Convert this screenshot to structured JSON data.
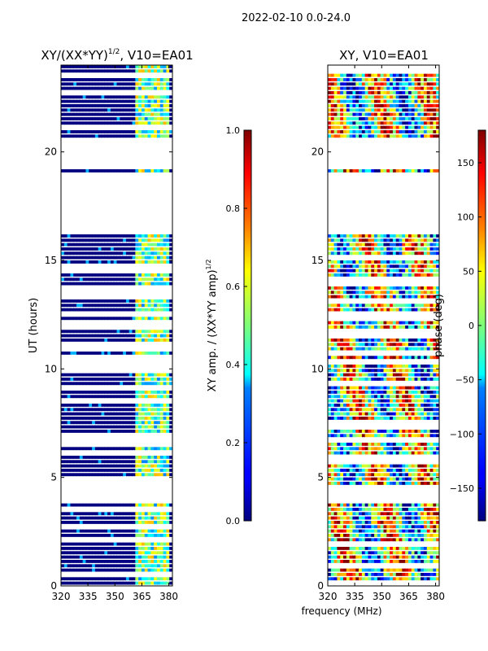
{
  "suptitle": "2022-02-10 0.0-24.0",
  "chart_data": [
    {
      "type": "heatmap",
      "title_main": "XY/(XX*YY)",
      "title_sup": "1/2",
      "title_suffix": ", V10=EA01",
      "ylabel": "UT (hours)",
      "xlabel": "",
      "xlim": [
        320,
        382
      ],
      "ylim": [
        0,
        24
      ],
      "xticks": [
        320,
        335,
        350,
        365,
        380
      ],
      "yticks": [
        0,
        5,
        10,
        15,
        20
      ],
      "colormap": "jet",
      "colorbar": {
        "label": "XY amp. / (XX*YY amp)",
        "label_sup": "1/2",
        "range": [
          0.0,
          1.0
        ],
        "ticks": [
          "0.0",
          "0.2",
          "0.4",
          "0.6",
          "0.8",
          "1.0"
        ]
      },
      "gaps_hours": [
        [
          16.1,
          19.0
        ],
        [
          19.2,
          20.7
        ],
        [
          3.9,
          4.6
        ]
      ],
      "bright_band_mhz": [
        361,
        380
      ]
    },
    {
      "type": "heatmap",
      "title_main": "XY, V10=EA01",
      "ylabel": "",
      "xlabel": "frequency (MHz)",
      "xlim": [
        320,
        382
      ],
      "ylim": [
        0,
        24
      ],
      "xticks": [
        320,
        335,
        350,
        365,
        380
      ],
      "yticks": [
        0,
        5,
        10,
        15,
        20
      ],
      "colormap": "jet",
      "colorbar": {
        "label": "phase (deg)",
        "range": [
          -180,
          180
        ],
        "ticks": [
          "−150",
          "−100",
          "−50",
          "0",
          "50",
          "100",
          "150"
        ]
      },
      "gaps_hours": [
        [
          16.1,
          19.0
        ],
        [
          19.2,
          20.7
        ],
        [
          3.9,
          4.6
        ]
      ]
    }
  ]
}
